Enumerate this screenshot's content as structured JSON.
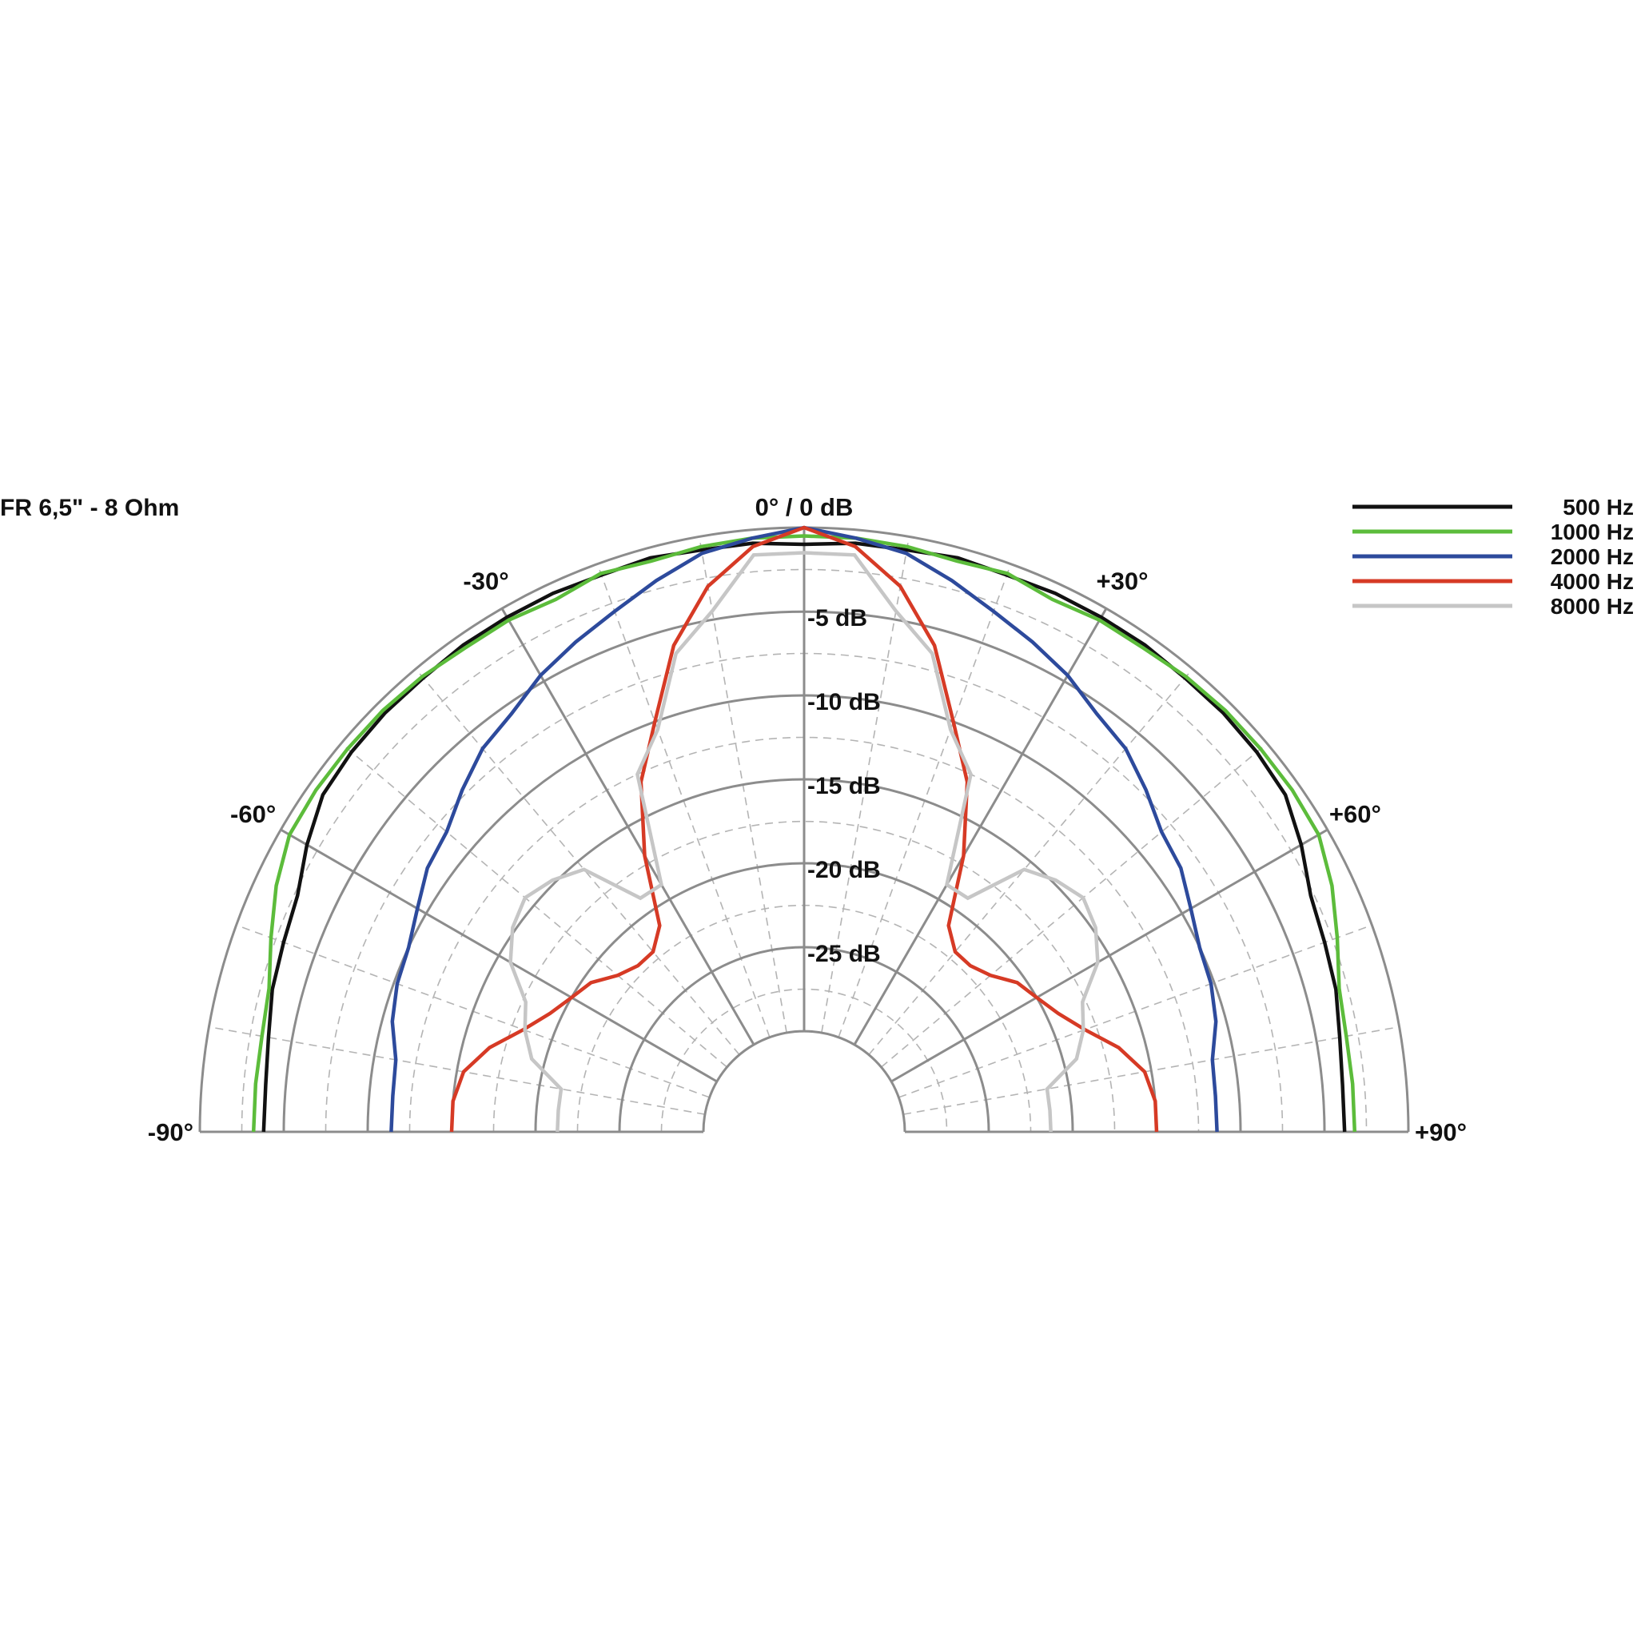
{
  "chart_data": {
    "type": "polar",
    "title": "FR 6,5\" - 8 Ohm",
    "center_label": "0° / 0 dB",
    "angle_range": [
      -90,
      90
    ],
    "angle_major_step": 30,
    "angle_minor_step": 10,
    "angle_labels": [
      {
        "angle": -90,
        "text": "-90°"
      },
      {
        "angle": -60,
        "text": "-60°"
      },
      {
        "angle": -30,
        "text": "-30°"
      },
      {
        "angle": 30,
        "text": "+30°"
      },
      {
        "angle": 60,
        "text": "+60°"
      },
      {
        "angle": 90,
        "text": "+90°"
      }
    ],
    "db_range": [
      -30,
      0
    ],
    "db_major_step": 5,
    "db_minor_step": 2.5,
    "db_labels": [
      {
        "db": -5,
        "text": "-5 dB"
      },
      {
        "db": -10,
        "text": "-10 dB"
      },
      {
        "db": -15,
        "text": "-15 dB"
      },
      {
        "db": -20,
        "text": "-20 dB"
      },
      {
        "db": -25,
        "text": "-25 dB"
      }
    ],
    "legend_position": "top-right",
    "grid": true,
    "angles": [
      0,
      5,
      10,
      15,
      20,
      25,
      30,
      35,
      40,
      45,
      50,
      55,
      60,
      65,
      70,
      75,
      80,
      85,
      90
    ],
    "series": [
      {
        "name": "500 Hz",
        "color": "#111111",
        "db": [
          -1,
          -0.8,
          -0.8,
          -0.6,
          -0.7,
          -0.6,
          -0.6,
          -0.6,
          -0.7,
          -0.7,
          -0.8,
          -1.0,
          -1.8,
          -2.7,
          -3.0,
          -3.2,
          -3.6,
          -3.8,
          -3.8
        ]
      },
      {
        "name": "1000 Hz",
        "color": "#5cbc3b",
        "db": [
          -0.5,
          -0.5,
          -0.6,
          -0.8,
          -0.6,
          -1.0,
          -0.8,
          -0.8,
          -0.6,
          -0.5,
          -0.5,
          -0.5,
          -0.6,
          -1.3,
          -2.2,
          -3.0,
          -3.2,
          -3.2,
          -3.2
        ]
      },
      {
        "name": "2000 Hz",
        "color": "#2d4a9c",
        "db": [
          0,
          -0.5,
          -1.0,
          -2.0,
          -3.0,
          -3.8,
          -4.6,
          -5.6,
          -6.2,
          -7.2,
          -8.2,
          -8.6,
          -9.4,
          -10.0,
          -10.2,
          -10.6,
          -11.3,
          -11.4,
          -11.4
        ]
      },
      {
        "name": "4000 Hz",
        "color": "#d63a25",
        "db": [
          0,
          -1,
          -3,
          -6,
          -10,
          -13,
          -17,
          -21,
          -22,
          -22,
          -21.5,
          -20.5,
          -20,
          -19.3,
          -18.2,
          -16.6,
          -15.4,
          -15,
          -15
        ]
      },
      {
        "name": "8000 Hz",
        "color": "#c6c6c6",
        "db": [
          -1.5,
          -1.5,
          -4.5,
          -6.5,
          -10.5,
          -12.5,
          -19,
          -19,
          -15.6,
          -14.8,
          -14.3,
          -14.8,
          -15.8,
          -17.7,
          -18.3,
          -19.2,
          -21.3,
          -21.3,
          -21.3
        ]
      }
    ]
  }
}
